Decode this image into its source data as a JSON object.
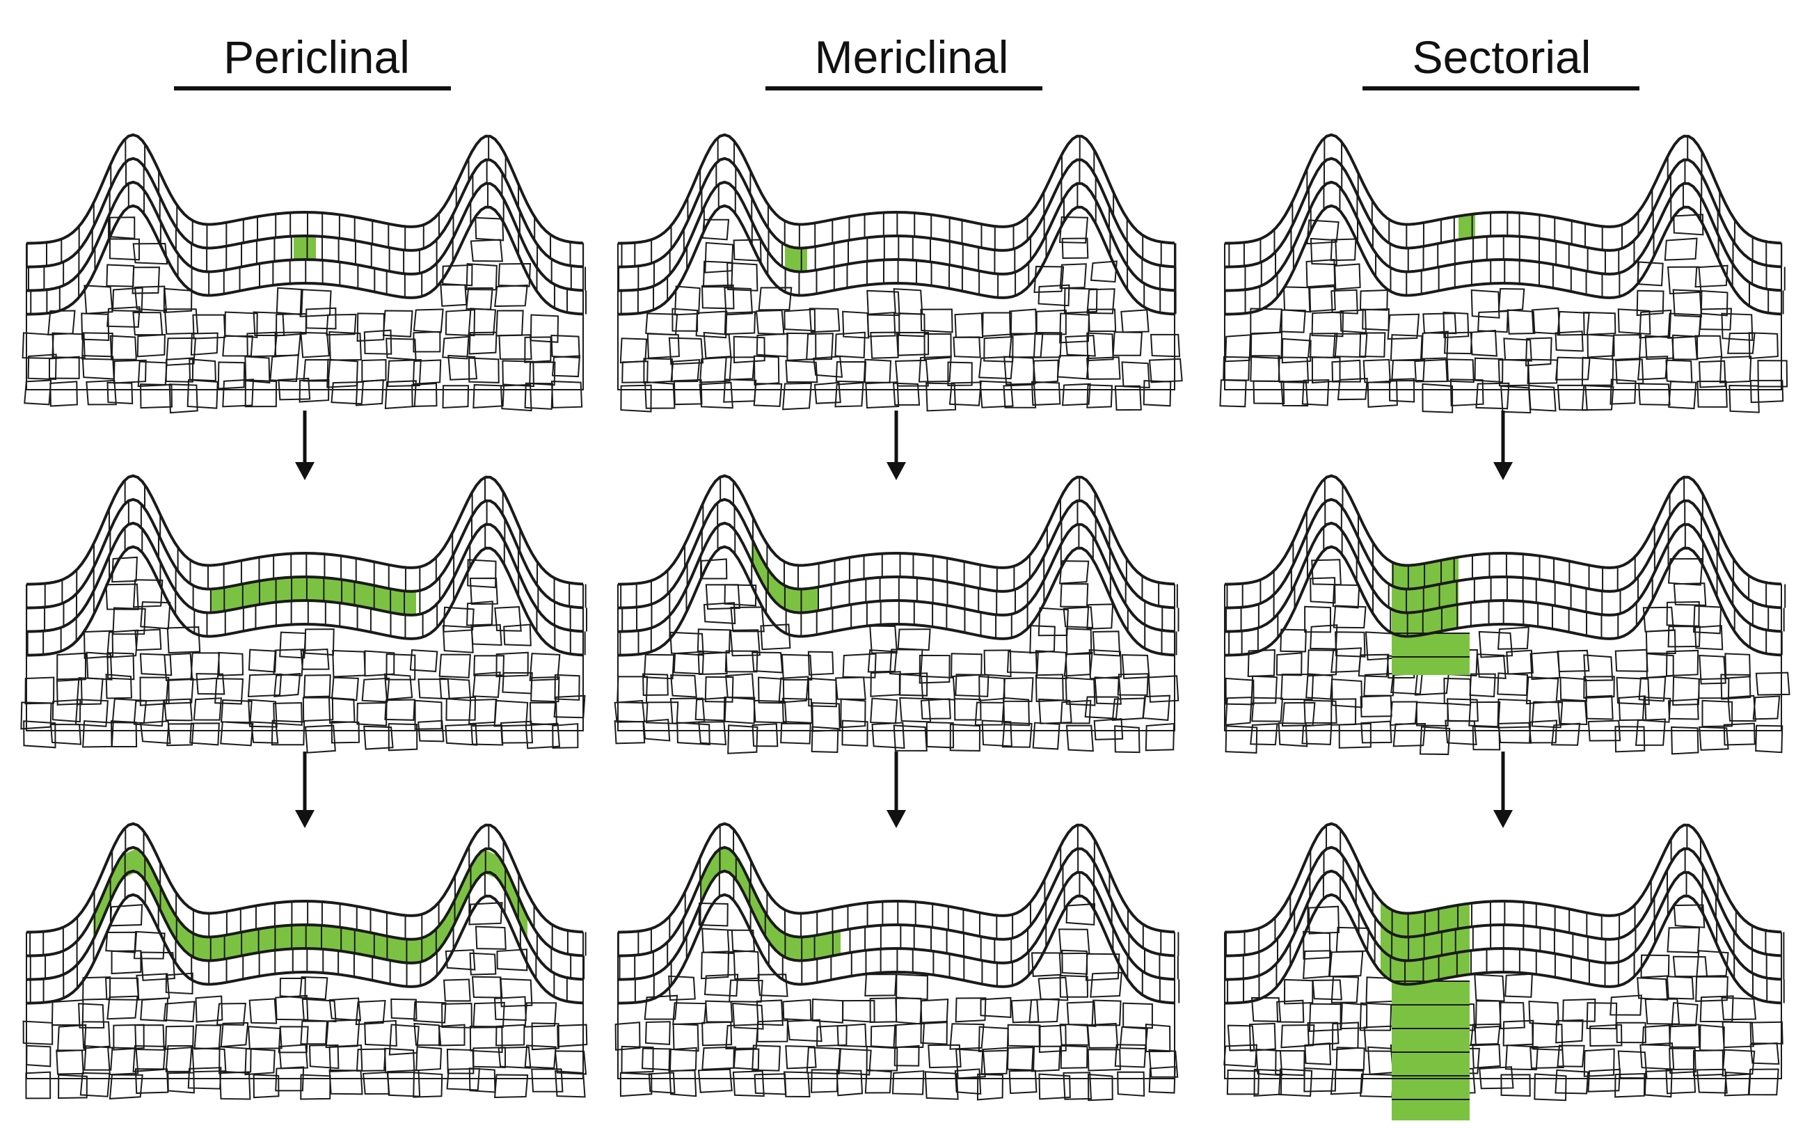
{
  "colors": {
    "outline": "#1a1a1a",
    "clone_fill": "#7cc242",
    "background": "#ffffff"
  },
  "columns": [
    {
      "title": "Periclinal",
      "pattern": "periclinal",
      "stages": [
        1,
        2,
        3
      ]
    },
    {
      "title": "Mericlinal",
      "pattern": "mericlinal",
      "stages": [
        1,
        2,
        3
      ]
    },
    {
      "title": "Sectorial",
      "pattern": "sectorial",
      "stages": [
        1,
        2,
        3
      ]
    }
  ],
  "arrow_icon": "down-arrow-icon"
}
